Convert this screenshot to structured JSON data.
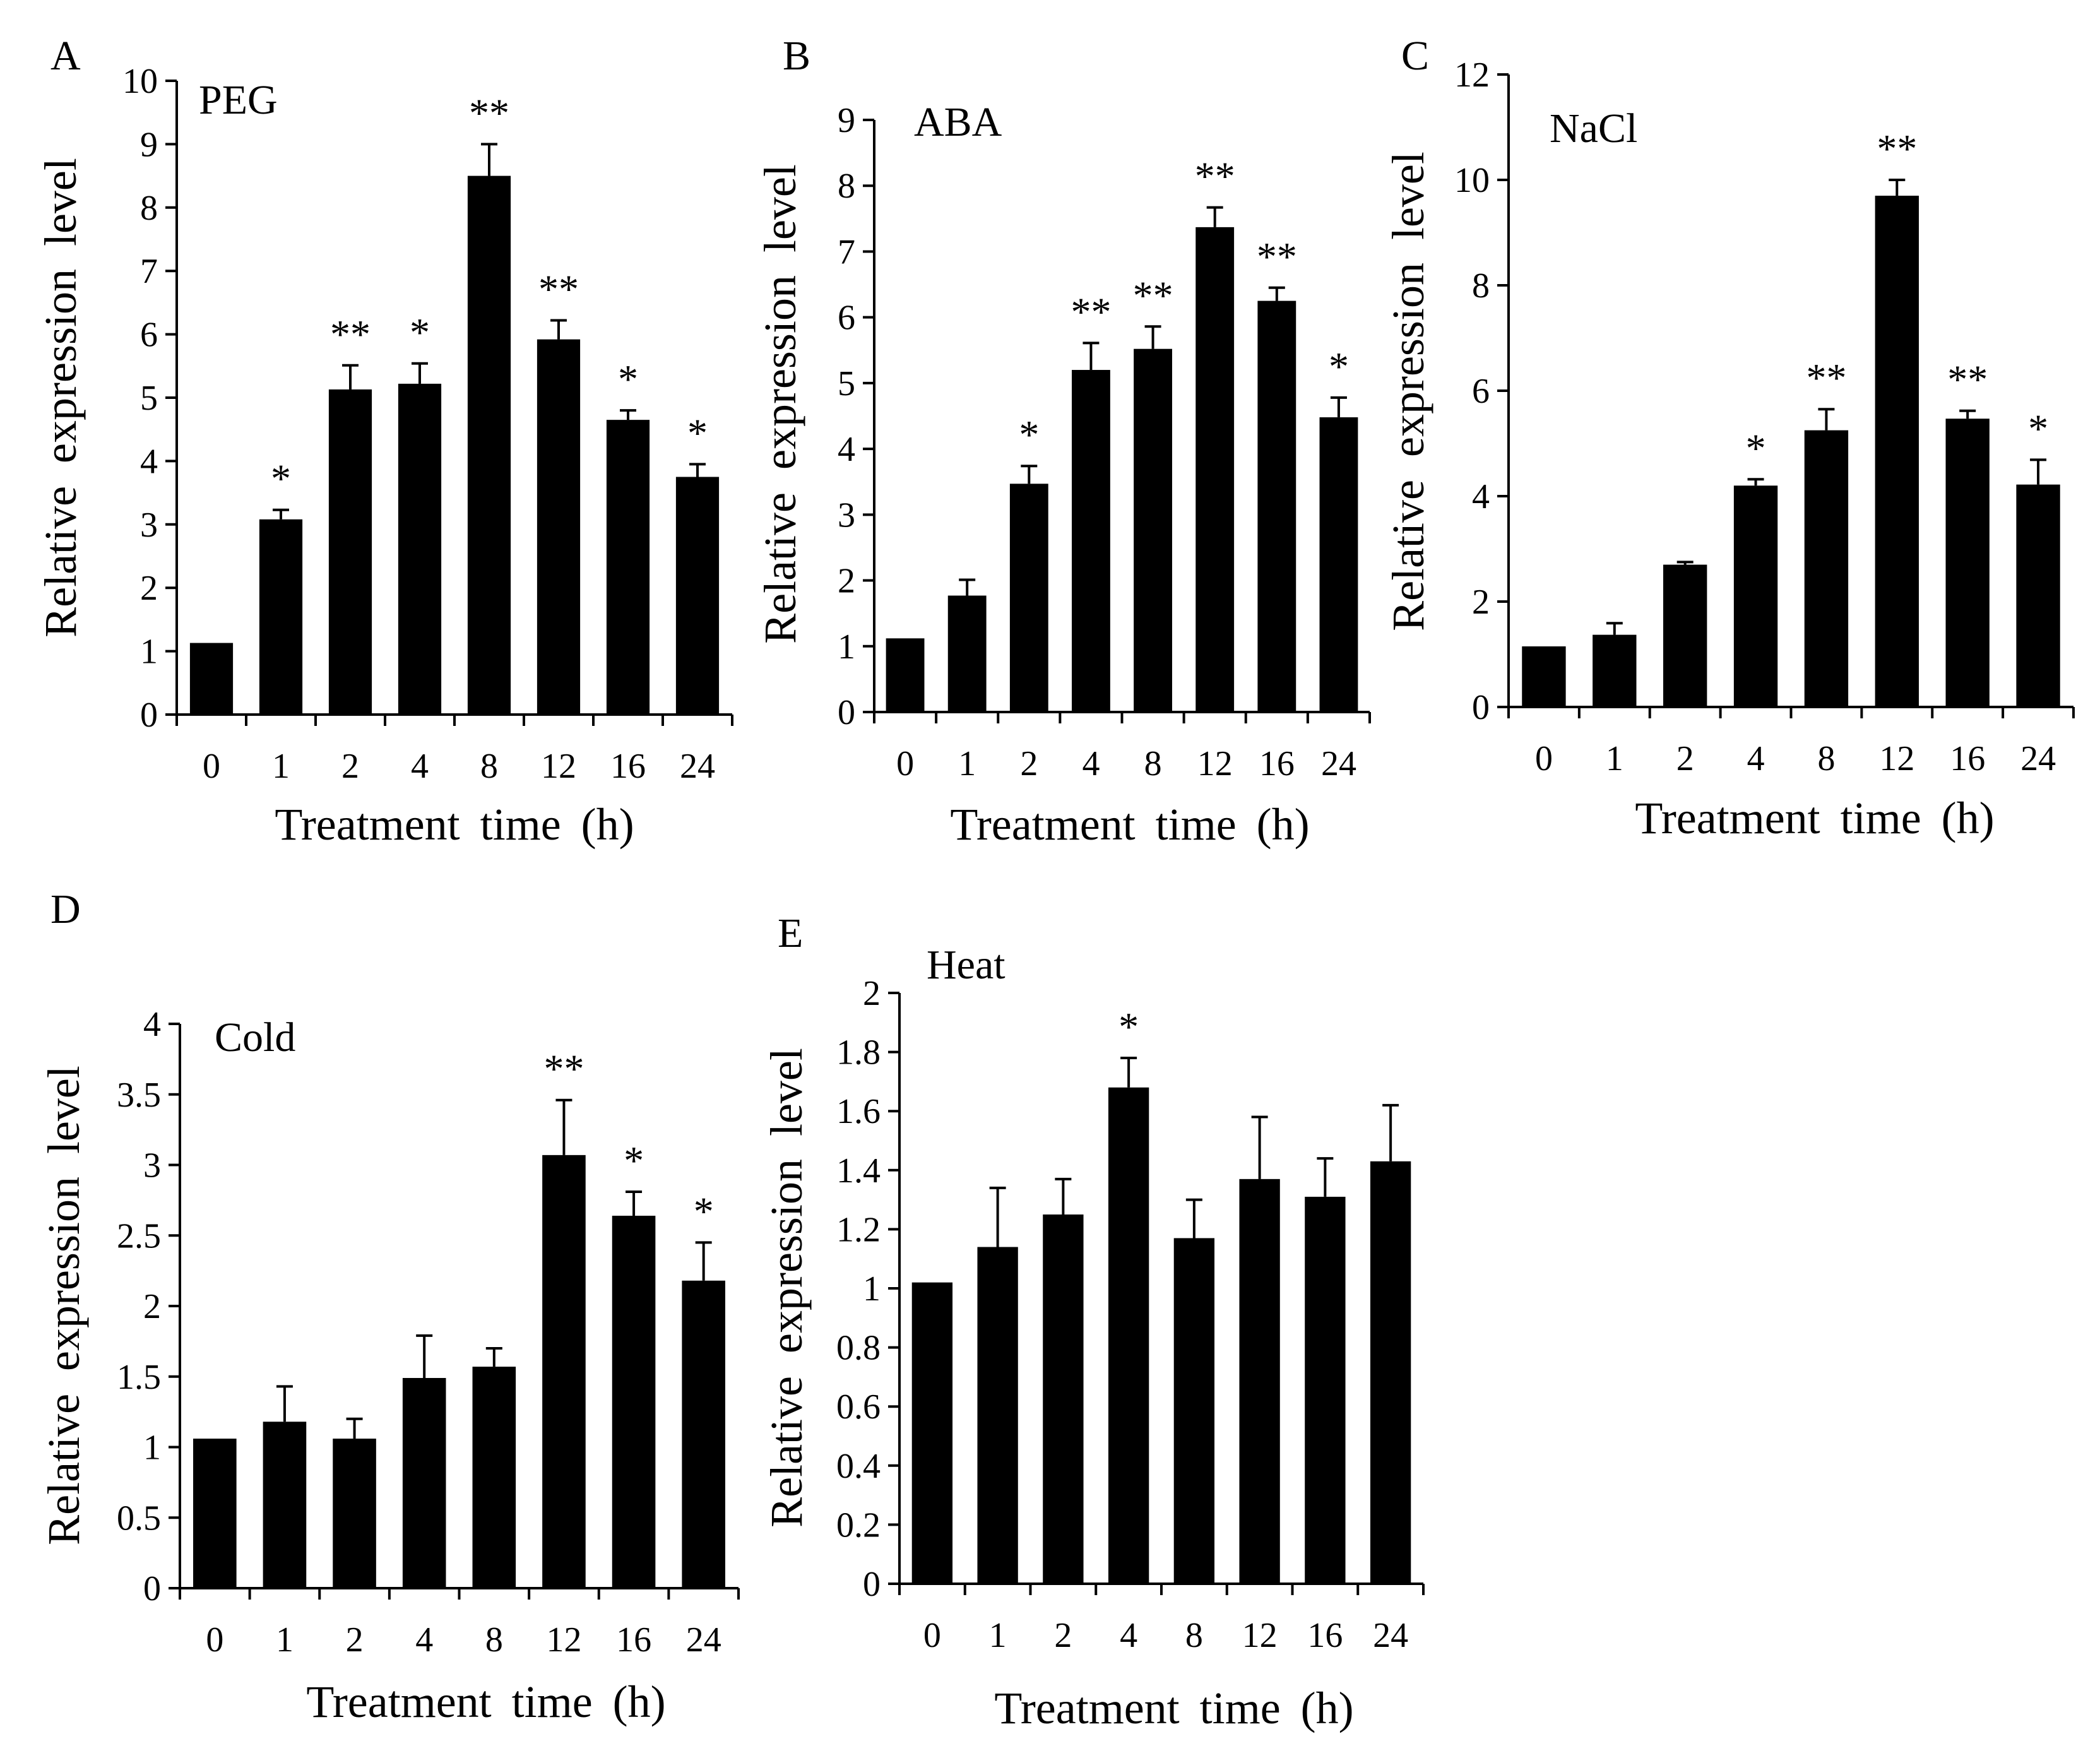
{
  "figure_title": "",
  "chart_data": [
    {
      "type": "bar",
      "panel": "A",
      "title": "PEG",
      "xlabel": "Treatment time (h)",
      "ylabel": "Relative expression level",
      "categories": [
        "0",
        "1",
        "2",
        "4",
        "8",
        "12",
        "16",
        "24"
      ],
      "values": [
        1.13,
        3.08,
        5.13,
        5.22,
        8.5,
        5.92,
        4.65,
        3.75
      ],
      "errors": [
        0.0,
        0.15,
        0.38,
        0.32,
        0.5,
        0.3,
        0.15,
        0.2
      ],
      "significance": [
        "",
        "*",
        "**",
        "*",
        "**",
        "**",
        "*",
        "*"
      ],
      "ylim": [
        0,
        10
      ],
      "yticks": [
        "0",
        "1",
        "2",
        "3",
        "4",
        "5",
        "6",
        "7",
        "8",
        "9",
        "10"
      ],
      "colors": {
        "bar": "#000000"
      },
      "grid": false
    },
    {
      "type": "bar",
      "panel": "B",
      "title": "ABA",
      "xlabel": "Treatment time (h)",
      "ylabel": "Relative expression level",
      "categories": [
        "0",
        "1",
        "2",
        "4",
        "8",
        "12",
        "16",
        "24"
      ],
      "values": [
        1.12,
        1.77,
        3.47,
        5.2,
        5.52,
        7.37,
        6.25,
        4.48
      ],
      "errors": [
        0.0,
        0.24,
        0.27,
        0.41,
        0.34,
        0.3,
        0.2,
        0.3
      ],
      "significance": [
        "",
        "",
        "*",
        "**",
        "**",
        "**",
        "**",
        "*"
      ],
      "ylim": [
        0,
        9
      ],
      "yticks": [
        "0",
        "1",
        "2",
        "3",
        "4",
        "5",
        "6",
        "7",
        "8",
        "9"
      ],
      "colors": {
        "bar": "#000000"
      },
      "grid": false
    },
    {
      "type": "bar",
      "panel": "C",
      "title": "NaCl",
      "xlabel": "Treatment time (h)",
      "ylabel": "Relative expression level",
      "categories": [
        "0",
        "1",
        "2",
        "4",
        "8",
        "12",
        "16",
        "24"
      ],
      "values": [
        1.15,
        1.37,
        2.7,
        4.2,
        5.25,
        9.7,
        5.47,
        4.22
      ],
      "errors": [
        0.0,
        0.22,
        0.05,
        0.12,
        0.4,
        0.3,
        0.15,
        0.47
      ],
      "significance": [
        "",
        "",
        "",
        "*",
        "**",
        "**",
        "**",
        "*"
      ],
      "ylim": [
        0,
        12
      ],
      "yticks": [
        "0",
        "2",
        "4",
        "6",
        "8",
        "10",
        "12"
      ],
      "colors": {
        "bar": "#000000"
      },
      "grid": false
    },
    {
      "type": "bar",
      "panel": "D",
      "title": "Cold",
      "xlabel": "Treatment time (h)",
      "ylabel": "Relative expression level",
      "categories": [
        "0",
        "1",
        "2",
        "4",
        "8",
        "12",
        "16",
        "24"
      ],
      "values": [
        1.06,
        1.18,
        1.06,
        1.49,
        1.57,
        3.07,
        2.64,
        2.18
      ],
      "errors": [
        0.0,
        0.25,
        0.14,
        0.3,
        0.13,
        0.39,
        0.17,
        0.27
      ],
      "significance": [
        "",
        "",
        "",
        "",
        "",
        "**",
        "*",
        "*"
      ],
      "ylim": [
        0,
        4
      ],
      "yticks": [
        "0",
        "0.5",
        "1",
        "1.5",
        "2",
        "2.5",
        "3",
        "3.5",
        "4"
      ],
      "colors": {
        "bar": "#000000"
      },
      "grid": false
    },
    {
      "type": "bar",
      "panel": "E",
      "title": "Heat",
      "xlabel": "Treatment time (h)",
      "ylabel": "Relative expression level",
      "categories": [
        "0",
        "1",
        "2",
        "4",
        "8",
        "12",
        "16",
        "24"
      ],
      "values": [
        1.02,
        1.14,
        1.25,
        1.68,
        1.17,
        1.37,
        1.31,
        1.43
      ],
      "errors": [
        0.0,
        0.2,
        0.12,
        0.1,
        0.13,
        0.21,
        0.13,
        0.19
      ],
      "significance": [
        "",
        "",
        "",
        "*",
        "",
        "",
        "",
        ""
      ],
      "ylim": [
        0,
        2
      ],
      "yticks": [
        "0",
        "0.2",
        "0.4",
        "0.6",
        "0.8",
        "1",
        "1.2",
        "1.4",
        "1.6",
        "1.8",
        "2"
      ],
      "colors": {
        "bar": "#000000"
      },
      "grid": false
    }
  ]
}
